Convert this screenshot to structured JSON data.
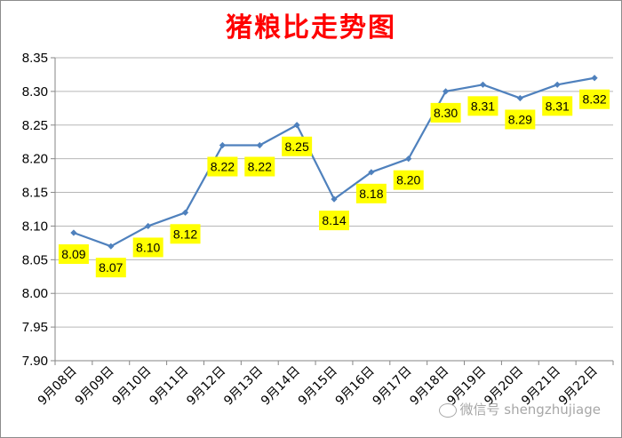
{
  "chart_data": {
    "type": "line",
    "title": "猪粮比走势图",
    "categories": [
      "9月08日",
      "9月09日",
      "9月10日",
      "9月11日",
      "9月12日",
      "9月13日",
      "9月14日",
      "9月15日",
      "9月16日",
      "9月17日",
      "9月18日",
      "9月19日",
      "9月20日",
      "9月21日",
      "9月22日"
    ],
    "series": [
      {
        "values": [
          8.09,
          8.07,
          8.1,
          8.12,
          8.22,
          8.22,
          8.25,
          8.14,
          8.18,
          8.2,
          8.3,
          8.31,
          8.29,
          8.31,
          8.32
        ]
      }
    ],
    "data_labels": [
      "8.09",
      "8.07",
      "8.10",
      "8.12",
      "8.22",
      "8.22",
      "8.25",
      "8.14",
      "8.18",
      "8.20",
      "8.30",
      "8.31",
      "8.29",
      "8.31",
      "8.32"
    ],
    "ylim": [
      7.9,
      8.35
    ],
    "yticks": [
      "7.90",
      "7.95",
      "8.00",
      "8.05",
      "8.10",
      "8.15",
      "8.20",
      "8.25",
      "8.30",
      "8.35"
    ],
    "grid": true,
    "colors": {
      "line": "#4f81bd",
      "grid": "#b7b7b7",
      "label_bg": "#ffff00",
      "title": "#ff0000"
    }
  },
  "watermark": {
    "text": "微信号 shengzhujiage",
    "icon": "wechat-icon"
  }
}
